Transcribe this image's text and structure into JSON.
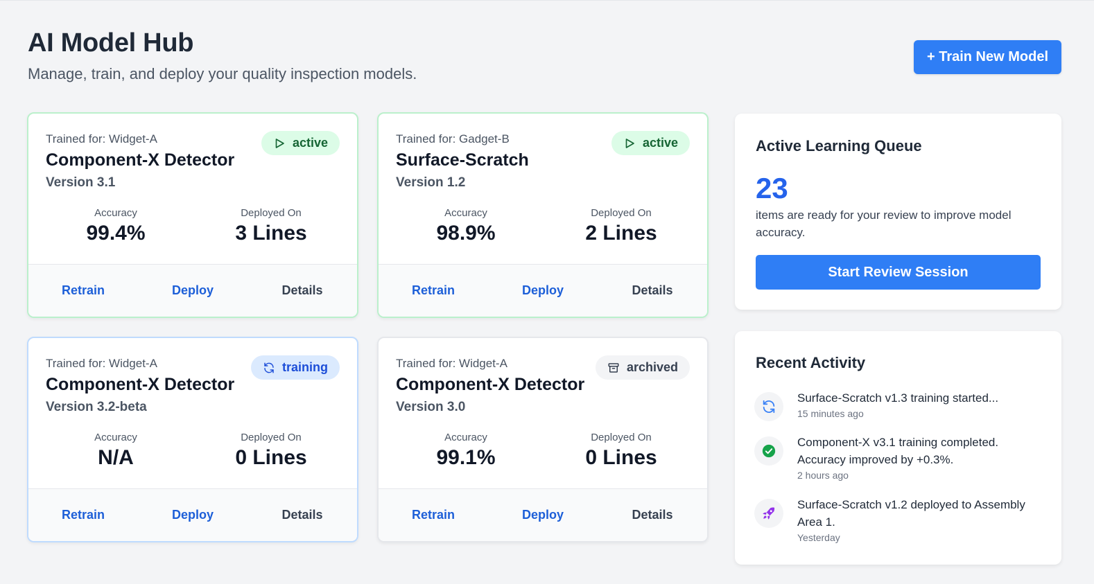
{
  "header": {
    "title": "AI Model Hub",
    "subtitle": "Manage, train, and deploy your quality inspection models.",
    "train_button": "+ Train New Model"
  },
  "colors": {
    "primary": "#2f7ef5",
    "active_badge_bg": "#dcfce7",
    "training_badge_bg": "#dbeafe",
    "archived_badge_bg": "#f3f4f6",
    "queue_count": "#2563eb"
  },
  "models": [
    {
      "trained_for": "Trained for: Widget-A",
      "name": "Component-X Detector",
      "version": "Version 3.1",
      "status": "active",
      "status_icon": "play-icon",
      "accuracy_label": "Accuracy",
      "accuracy": "99.4%",
      "deployed_label": "Deployed On",
      "deployed": "3 Lines",
      "actions": {
        "retrain": "Retrain",
        "deploy": "Deploy",
        "details": "Details"
      }
    },
    {
      "trained_for": "Trained for: Gadget-B",
      "name": "Surface-Scratch",
      "version": "Version 1.2",
      "status": "active",
      "status_icon": "play-icon",
      "accuracy_label": "Accuracy",
      "accuracy": "98.9%",
      "deployed_label": "Deployed On",
      "deployed": "2 Lines",
      "actions": {
        "retrain": "Retrain",
        "deploy": "Deploy",
        "details": "Details"
      }
    },
    {
      "trained_for": "Trained for: Widget-A",
      "name": "Component-X Detector",
      "version": "Version 3.2-beta",
      "status": "training",
      "status_icon": "refresh-icon",
      "accuracy_label": "Accuracy",
      "accuracy": "N/A",
      "deployed_label": "Deployed On",
      "deployed": "0 Lines",
      "actions": {
        "retrain": "Retrain",
        "deploy": "Deploy",
        "details": "Details"
      }
    },
    {
      "trained_for": "Trained for: Widget-A",
      "name": "Component-X Detector",
      "version": "Version 3.0",
      "status": "archived",
      "status_icon": "archive-icon",
      "accuracy_label": "Accuracy",
      "accuracy": "99.1%",
      "deployed_label": "Deployed On",
      "deployed": "0 Lines",
      "actions": {
        "retrain": "Retrain",
        "deploy": "Deploy",
        "details": "Details"
      }
    }
  ],
  "queue": {
    "title": "Active Learning Queue",
    "count": "23",
    "description": "items are ready for your review to improve model accuracy.",
    "button": "Start Review Session"
  },
  "activity": {
    "title": "Recent Activity",
    "items": [
      {
        "icon": "refresh-icon",
        "text": "Surface-Scratch v1.3 training started...",
        "time": "15 minutes ago"
      },
      {
        "icon": "check-circle-icon",
        "text": "Component-X v3.1 training completed. Accuracy improved by +0.3%.",
        "time": "2 hours ago"
      },
      {
        "icon": "rocket-icon",
        "text": "Surface-Scratch v1.2 deployed to Assembly Area 1.",
        "time": "Yesterday"
      }
    ]
  }
}
